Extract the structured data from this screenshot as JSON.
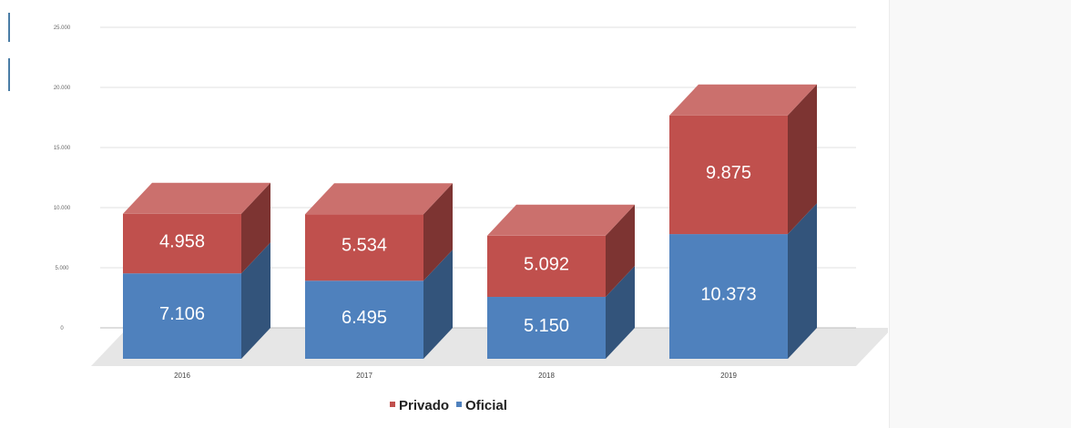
{
  "chart_data": {
    "type": "bar",
    "stacked": true,
    "style": "3d",
    "categories": [
      "2016",
      "2017",
      "2018",
      "2019"
    ],
    "series": [
      {
        "name": "Oficial",
        "values": [
          7106,
          6495,
          5150,
          10373
        ],
        "labels": [
          "7.106",
          "6.495",
          "5.150",
          "10.373"
        ],
        "color": "#4f81bd"
      },
      {
        "name": "Privado",
        "values": [
          4958,
          5534,
          5092,
          9875
        ],
        "labels": [
          "4.958",
          "5.534",
          "5.092",
          "9.875"
        ],
        "color": "#c0504d"
      }
    ],
    "legend_order": [
      "Privado",
      "Oficial"
    ],
    "ylim": [
      0,
      25000
    ],
    "yticks": [
      0,
      5000,
      10000,
      15000,
      20000,
      25000
    ],
    "ytick_labels": [
      "0",
      "5.000",
      "10.000",
      "15.000",
      "20.000",
      "25.000"
    ],
    "grid": true,
    "legend_position": "bottom"
  }
}
